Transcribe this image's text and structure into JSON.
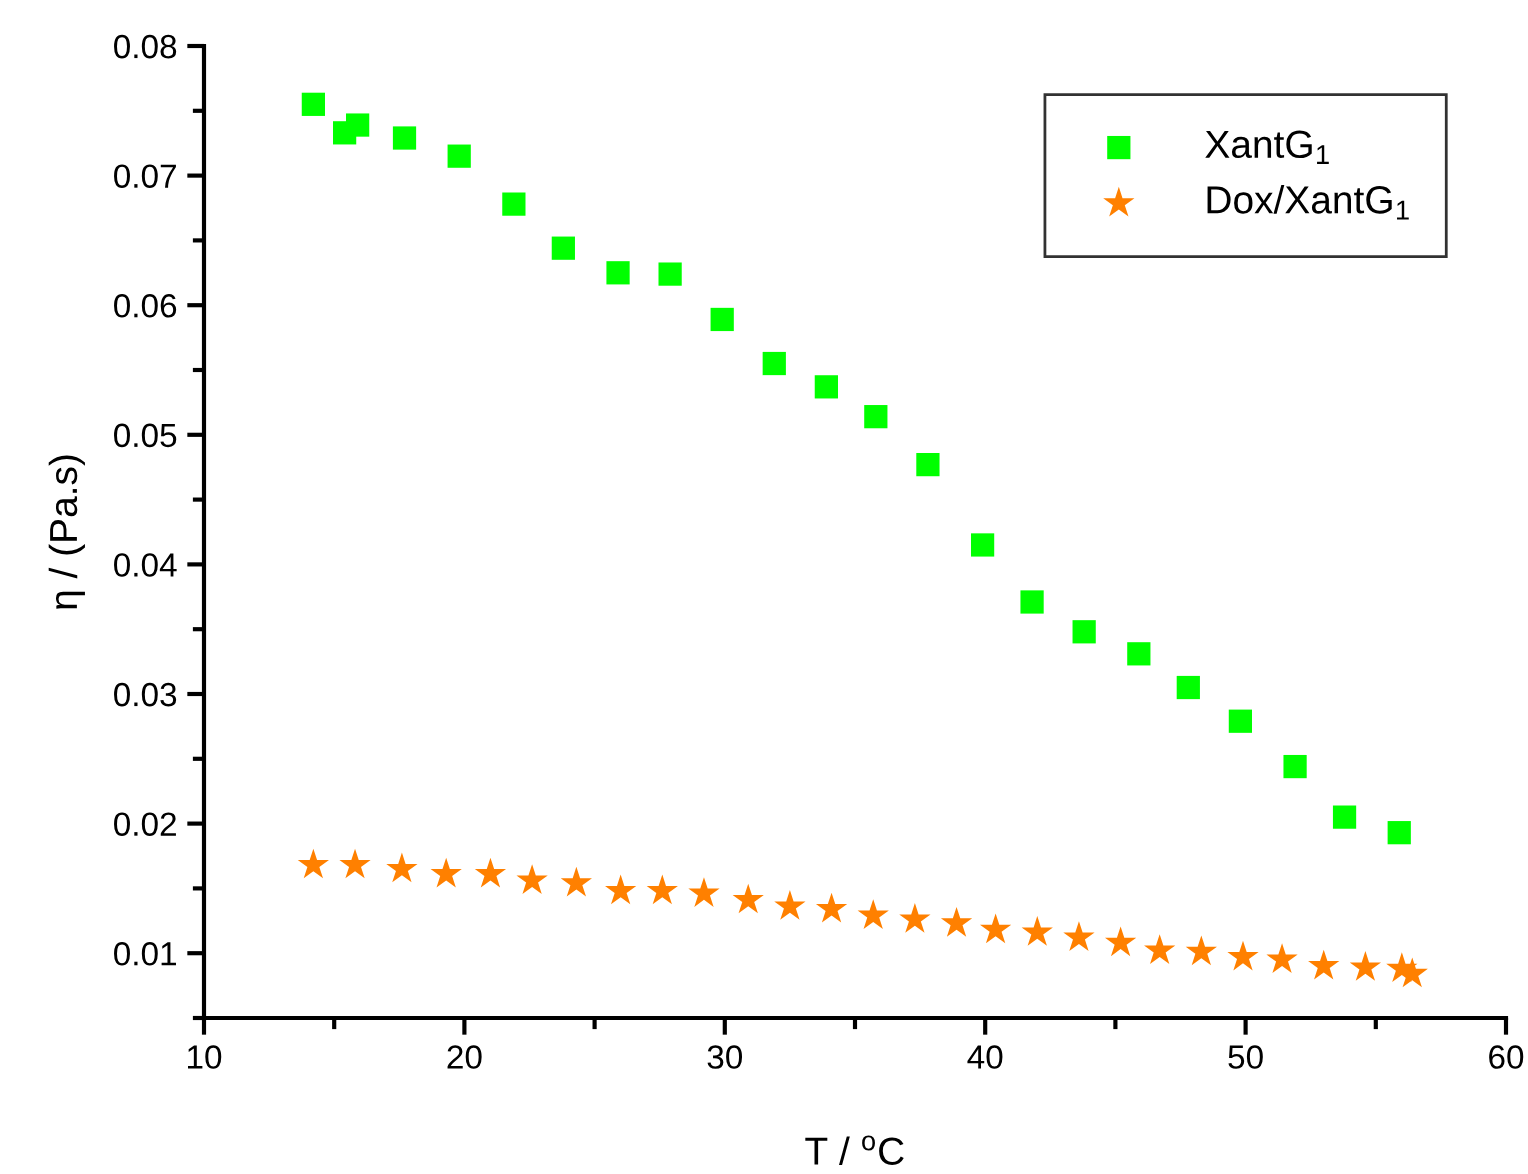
{
  "chart_data": {
    "type": "scatter",
    "xlabel": "T / $^{o}$C",
    "ylabel": "η / (Pa.s)",
    "xlim": [
      10,
      60
    ],
    "xticks": [
      10,
      20,
      30,
      40,
      50,
      60
    ],
    "ylim": [
      0.005,
      0.08
    ],
    "yticks": [
      0.01,
      0.02,
      0.03,
      0.04,
      0.05,
      0.06,
      0.07,
      0.08
    ],
    "grid": false,
    "legend": "top right",
    "series": [
      {
        "name": "XantG$_{1}$",
        "color": "#00ff00",
        "marker": "square",
        "x": [
          14.2,
          15.4,
          15.9,
          17.7,
          19.8,
          21.9,
          23.8,
          25.9,
          27.9,
          29.9,
          31.9,
          33.9,
          35.8,
          37.8,
          39.9,
          41.8,
          43.8,
          45.9,
          47.8,
          49.8,
          51.9,
          53.8,
          55.9
        ],
        "values": [
          0.0755,
          0.0733,
          0.0739,
          0.0729,
          0.0715,
          0.0678,
          0.0644,
          0.0625,
          0.0624,
          0.0589,
          0.0555,
          0.0537,
          0.0514,
          0.0477,
          0.0415,
          0.0371,
          0.0348,
          0.0331,
          0.0305,
          0.0279,
          0.0244,
          0.0205,
          0.0193
        ]
      },
      {
        "name": "Dox/XantG$_{1}$",
        "color": "#ff8000",
        "marker": "star",
        "x": [
          14.2,
          15.8,
          17.6,
          19.3,
          21.0,
          22.6,
          24.3,
          26.0,
          27.6,
          29.2,
          30.9,
          32.5,
          34.1,
          35.7,
          37.3,
          38.9,
          40.4,
          42.0,
          43.6,
          45.2,
          46.7,
          48.3,
          49.9,
          51.4,
          53.0,
          54.6,
          56.0,
          56.4
        ],
        "values": [
          0.0168,
          0.0168,
          0.0165,
          0.0161,
          0.0161,
          0.0156,
          0.0154,
          0.0148,
          0.0148,
          0.0146,
          0.0141,
          0.0136,
          0.0134,
          0.0129,
          0.0126,
          0.0123,
          0.0118,
          0.0116,
          0.0112,
          0.0108,
          0.0102,
          0.0101,
          0.0097,
          0.0095,
          0.009,
          0.0089,
          0.0088,
          0.0084
        ]
      }
    ]
  }
}
